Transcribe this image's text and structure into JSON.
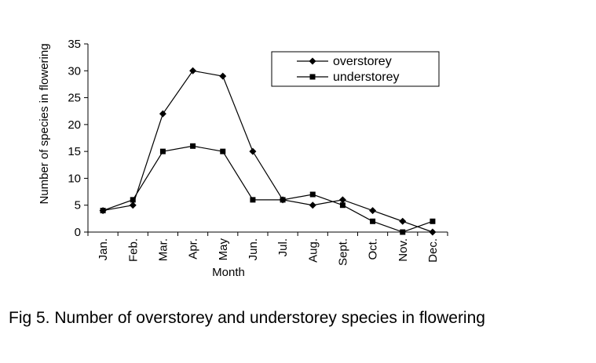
{
  "figure": {
    "caption": "Fig 5. Number of overstorey and understorey species in flowering"
  },
  "chart_data": {
    "type": "line",
    "title": "",
    "xlabel": "Month",
    "ylabel": "Number of species in flowering",
    "categories": [
      "Jan.",
      "Feb.",
      "Mar.",
      "Apr.",
      "May",
      "Jun.",
      "Jul.",
      "Aug.",
      "Sept.",
      "Oct.",
      "Nov.",
      "Dec."
    ],
    "ylim": [
      0,
      35
    ],
    "yticks": [
      0,
      5,
      10,
      15,
      20,
      25,
      30,
      35
    ],
    "grid": false,
    "legend_position": "top-right",
    "series": [
      {
        "name": "overstorey",
        "marker": "diamond",
        "color": "#000000",
        "values": [
          4,
          5,
          22,
          30,
          29,
          15,
          6,
          5,
          6,
          4,
          2,
          0
        ]
      },
      {
        "name": "understorey",
        "marker": "square",
        "color": "#000000",
        "values": [
          4,
          6,
          15,
          16,
          15,
          6,
          6,
          7,
          5,
          2,
          0,
          2
        ]
      }
    ]
  }
}
